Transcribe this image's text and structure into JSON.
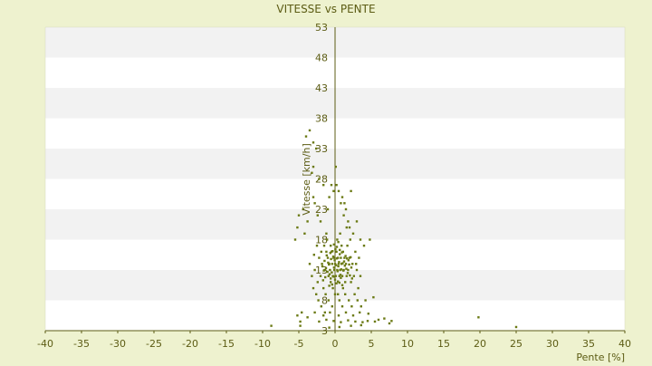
{
  "chart_data": {
    "type": "scatter",
    "title": "VITESSE vs PENTE",
    "xlabel": "Pente [%]",
    "ylabel": "Vitesse [km/h]",
    "xlim": [
      -40,
      40
    ],
    "ylim": [
      3,
      53
    ],
    "xticks": [
      -40,
      -35,
      -30,
      -25,
      -20,
      -15,
      -10,
      -5,
      0,
      5,
      10,
      15,
      20,
      25,
      30,
      35,
      40
    ],
    "yticks": [
      3,
      8,
      13,
      18,
      23,
      28,
      33,
      38,
      43,
      48,
      53
    ],
    "grid": "alternating-horizontal-bands",
    "legend": "none",
    "colors": {
      "background": "#eef2cf",
      "plot_band_light": "#ffffff",
      "plot_band_dark": "#f2f2f2",
      "axis": "#5c5c14",
      "marker": "#6b7a14"
    },
    "points": [
      [
        -5.5,
        18
      ],
      [
        -5.2,
        20
      ],
      [
        -5.0,
        22
      ],
      [
        -4.2,
        19
      ],
      [
        -4.0,
        35
      ],
      [
        -3.5,
        36
      ],
      [
        -3.0,
        34
      ],
      [
        -2.6,
        33
      ],
      [
        -4.4,
        23
      ],
      [
        -3.8,
        21
      ],
      [
        -3.2,
        29
      ],
      [
        -3.0,
        25
      ],
      [
        -2.8,
        24
      ],
      [
        -2.4,
        22
      ],
      [
        -2.0,
        21
      ],
      [
        -1.5,
        17
      ],
      [
        -1.2,
        19
      ],
      [
        -1.0,
        23
      ],
      [
        -0.8,
        25
      ],
      [
        -0.5,
        27
      ],
      [
        -0.2,
        26
      ],
      [
        0.2,
        27
      ],
      [
        0.5,
        26
      ],
      [
        0.8,
        24
      ],
      [
        1.0,
        25
      ],
      [
        1.2,
        22
      ],
      [
        1.5,
        23
      ],
      [
        1.8,
        21
      ],
      [
        2.0,
        20
      ],
      [
        2.5,
        19
      ],
      [
        3.0,
        21
      ],
      [
        3.5,
        18
      ],
      [
        4.0,
        17
      ],
      [
        4.8,
        18
      ],
      [
        -3.5,
        14
      ],
      [
        -3.2,
        12
      ],
      [
        -3.0,
        10
      ],
      [
        -2.8,
        13
      ],
      [
        -2.6,
        9
      ],
      [
        -2.4,
        11
      ],
      [
        -2.2,
        15
      ],
      [
        -2.0,
        12
      ],
      [
        -1.8,
        14
      ],
      [
        -1.6,
        10
      ],
      [
        -1.4,
        13
      ],
      [
        -1.2,
        16
      ],
      [
        -1.0,
        15
      ],
      [
        -0.9,
        12
      ],
      [
        -0.8,
        14
      ],
      [
        -0.7,
        13
      ],
      [
        -0.6,
        11
      ],
      [
        -0.5,
        16
      ],
      [
        -0.4,
        14
      ],
      [
        -0.3,
        12
      ],
      [
        -0.2,
        15
      ],
      [
        -0.1,
        13
      ],
      [
        0.0,
        14
      ],
      [
        0.1,
        12
      ],
      [
        0.2,
        16
      ],
      [
        0.3,
        13
      ],
      [
        0.4,
        15
      ],
      [
        0.5,
        14
      ],
      [
        0.6,
        12
      ],
      [
        0.7,
        13
      ],
      [
        0.8,
        15
      ],
      [
        0.9,
        14
      ],
      [
        1.0,
        12
      ],
      [
        1.1,
        16
      ],
      [
        1.2,
        13
      ],
      [
        1.3,
        15
      ],
      [
        1.4,
        11
      ],
      [
        1.5,
        14
      ],
      [
        1.6,
        12
      ],
      [
        1.8,
        13
      ],
      [
        2.0,
        15
      ],
      [
        2.2,
        11
      ],
      [
        2.4,
        14
      ],
      [
        2.6,
        12
      ],
      [
        2.8,
        16
      ],
      [
        3.0,
        13
      ],
      [
        3.2,
        10
      ],
      [
        3.5,
        12
      ],
      [
        -0.6,
        17
      ],
      [
        0.3,
        18
      ],
      [
        0.9,
        17
      ],
      [
        -1.1,
        18
      ],
      [
        1.7,
        17
      ],
      [
        -0.3,
        10
      ],
      [
        0.4,
        9
      ],
      [
        1.1,
        10
      ],
      [
        -1.3,
        9
      ],
      [
        -2.3,
        8
      ],
      [
        -1.9,
        7
      ],
      [
        -1.4,
        6
      ],
      [
        -0.9,
        8
      ],
      [
        -0.4,
        7
      ],
      [
        0.0,
        9
      ],
      [
        0.6,
        8
      ],
      [
        1.0,
        7
      ],
      [
        1.4,
        9
      ],
      [
        1.9,
        8
      ],
      [
        2.3,
        7
      ],
      [
        2.7,
        9
      ],
      [
        3.1,
        8
      ],
      [
        3.6,
        7
      ],
      [
        4.2,
        8
      ],
      [
        5.3,
        8.5
      ],
      [
        -2.8,
        6
      ],
      [
        -1.6,
        5.5
      ],
      [
        -0.7,
        6
      ],
      [
        0.5,
        5.5
      ],
      [
        1.5,
        6
      ],
      [
        2.5,
        5.5
      ],
      [
        3.4,
        6
      ],
      [
        4.6,
        5.8
      ],
      [
        -4.6,
        6
      ],
      [
        -3.8,
        5.2
      ],
      [
        -2.2,
        4.5
      ],
      [
        -1.2,
        4.8
      ],
      [
        -0.2,
        4.6
      ],
      [
        0.8,
        4.4
      ],
      [
        1.8,
        4.7
      ],
      [
        2.8,
        4.5
      ],
      [
        3.8,
        4.4
      ],
      [
        4.5,
        4.6
      ],
      [
        5.5,
        4.5
      ],
      [
        6.0,
        4.8
      ],
      [
        6.8,
        5
      ],
      [
        7.5,
        4.2
      ],
      [
        7.8,
        4.6
      ],
      [
        -5.2,
        5.5
      ],
      [
        -4.8,
        4.5
      ],
      [
        -4.8,
        3.8
      ],
      [
        -8.8,
        3.8
      ],
      [
        -0.8,
        3.5
      ],
      [
        0.6,
        3.6
      ],
      [
        2.2,
        3.8
      ],
      [
        3.6,
        3.9
      ],
      [
        19.8,
        5.2
      ],
      [
        25.0,
        3.6
      ],
      [
        -3.0,
        30
      ],
      [
        -2.2,
        28
      ],
      [
        -1.6,
        27
      ],
      [
        0.1,
        30
      ],
      [
        1.3,
        24
      ],
      [
        2.2,
        26
      ],
      [
        -1.9,
        16
      ],
      [
        0.7,
        19
      ],
      [
        1.6,
        20
      ],
      [
        2.1,
        18
      ],
      [
        -2.5,
        17
      ],
      [
        2.9,
        14
      ],
      [
        3.3,
        15
      ],
      [
        -2.9,
        15.5
      ],
      [
        -0.05,
        14.6
      ],
      [
        0.15,
        13.8
      ],
      [
        0.25,
        14.9
      ],
      [
        -0.15,
        13.4
      ],
      [
        0.35,
        12.8
      ],
      [
        0.45,
        13.6
      ],
      [
        -0.25,
        15.2
      ],
      [
        0.55,
        14.3
      ],
      [
        0.65,
        15.6
      ],
      [
        -0.45,
        12.6
      ],
      [
        0.75,
        12.2
      ],
      [
        0.85,
        13.1
      ],
      [
        -0.55,
        14.8
      ],
      [
        0.95,
        15.9
      ],
      [
        1.05,
        14.1
      ],
      [
        -0.65,
        15.8
      ],
      [
        1.15,
        12.9
      ],
      [
        1.25,
        14.4
      ],
      [
        -0.75,
        12.3
      ],
      [
        1.35,
        13.7
      ],
      [
        -0.85,
        13.9
      ],
      [
        1.45,
        15.3
      ],
      [
        -0.95,
        14.2
      ],
      [
        1.55,
        13.2
      ],
      [
        -1.05,
        12.7
      ],
      [
        1.65,
        14.9
      ],
      [
        -1.15,
        15.4
      ],
      [
        1.75,
        12.5
      ],
      [
        -1.25,
        13.3
      ],
      [
        1.85,
        14.6
      ],
      [
        -1.35,
        11.8
      ],
      [
        1.95,
        13.9
      ],
      [
        -1.45,
        14.5
      ],
      [
        2.05,
        12.1
      ],
      [
        -1.55,
        12.9
      ],
      [
        2.15,
        15.1
      ],
      [
        -1.65,
        11.3
      ],
      [
        2.25,
        13.4
      ],
      [
        -1.75,
        13.6
      ],
      [
        2.35,
        11.6
      ],
      [
        0.0,
        11.4
      ],
      [
        0.2,
        10.8
      ],
      [
        -0.2,
        11.9
      ],
      [
        0.4,
        11.1
      ],
      [
        -0.4,
        10.6
      ],
      [
        0.6,
        10.9
      ],
      [
        -0.6,
        11.6
      ],
      [
        0.8,
        11.7
      ],
      [
        -0.8,
        10.4
      ],
      [
        1.0,
        10.5
      ],
      [
        0.05,
        16.4
      ],
      [
        0.25,
        16.8
      ],
      [
        -0.15,
        17.2
      ],
      [
        0.45,
        17.6
      ],
      [
        -0.35,
        16.1
      ],
      [
        0.65,
        16.3
      ]
    ]
  }
}
